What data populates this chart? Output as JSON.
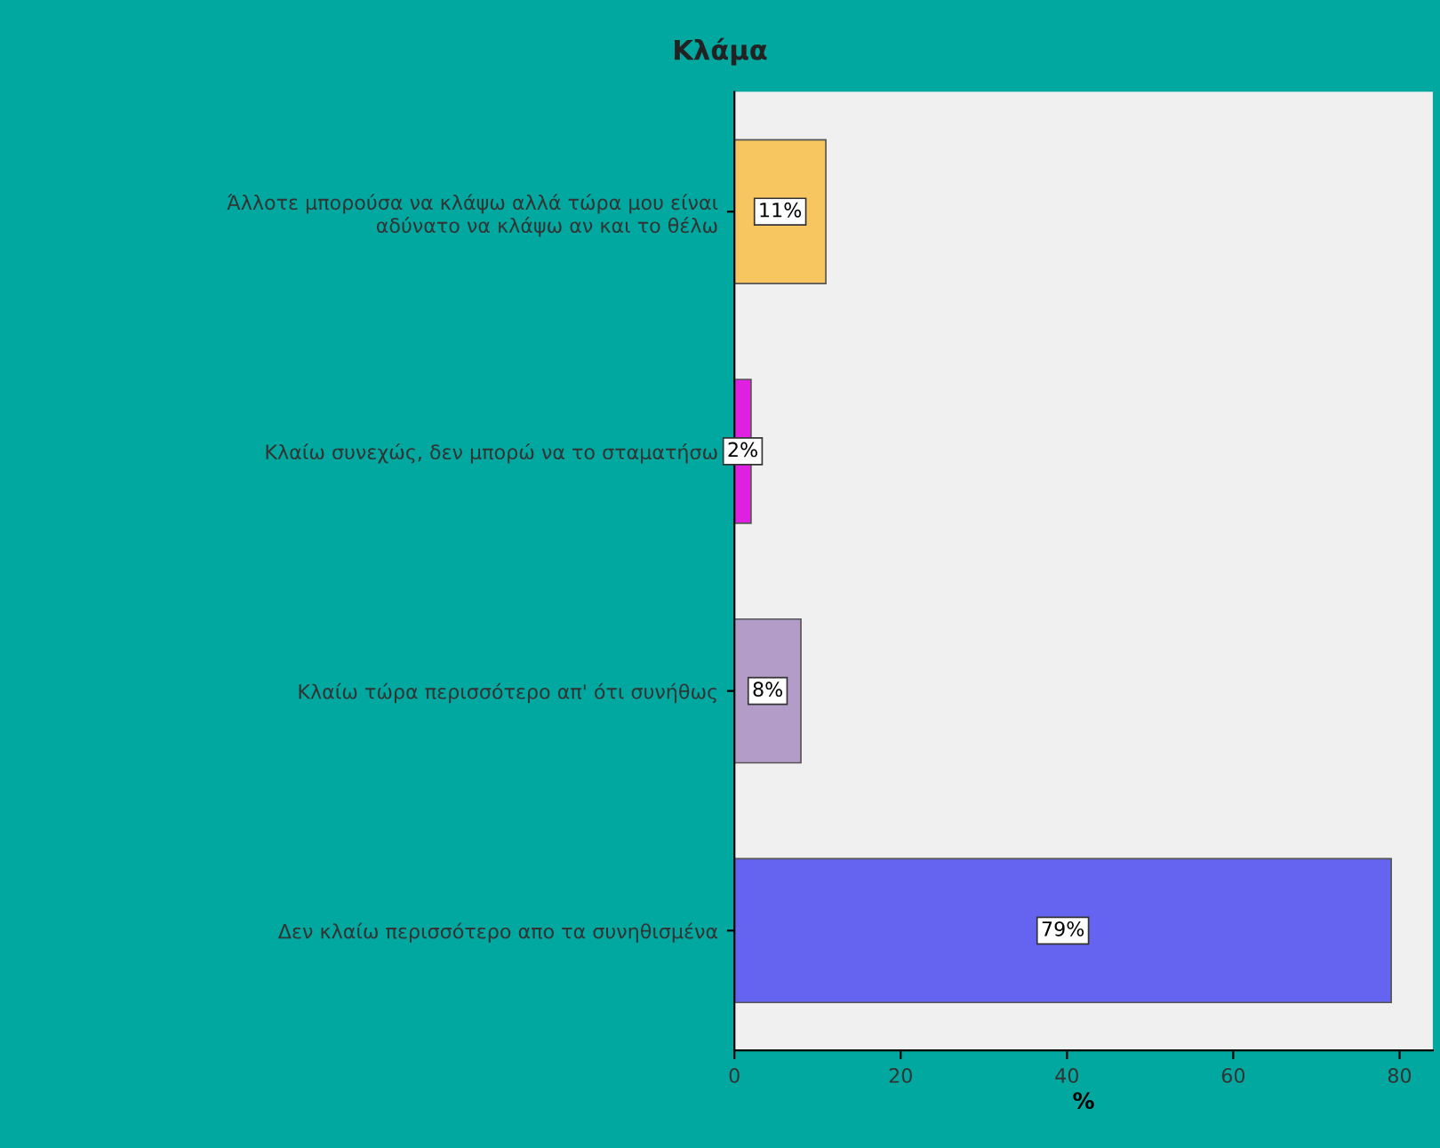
{
  "chart_data": {
    "type": "bar",
    "orientation": "horizontal",
    "title": "Κλάμα",
    "xlabel": "%",
    "categories": [
      "Άλλοτε μπορούσα να κλάψω αλλά τώρα μου είναι\nαδύνατο να κλάψω αν και το θέλω",
      "Κλαίω συνεχώς, δεν μπορώ να το σταματήσω",
      "Κλαίω τώρα περισσότερο απ' ότι συνήθως",
      "Δεν κλαίω περισσότερο απο τα συνηθισμένα"
    ],
    "values": [
      11,
      2,
      8,
      79
    ],
    "colors": [
      "#f8c660",
      "#e020e0",
      "#b49cc8",
      "#6464f0"
    ],
    "value_labels": [
      "11%",
      "2%",
      "8%",
      "79%"
    ],
    "xlim": [
      0,
      84
    ],
    "xticks": [
      0,
      20,
      40,
      60,
      80
    ],
    "grid": false,
    "legend": false
  }
}
